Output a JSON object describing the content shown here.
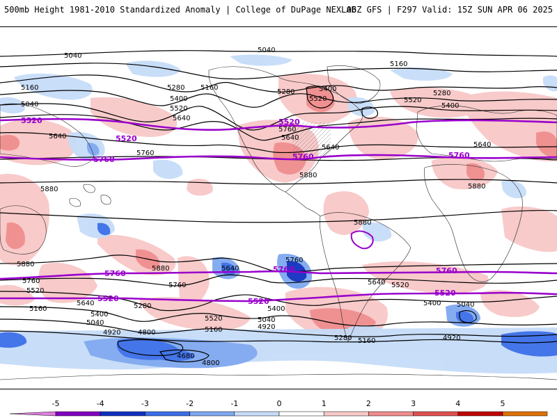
{
  "header": {
    "title": "500mb Height 1981-2010 Standardized Anomaly | College of DuPage NEXLAB",
    "run_info": "06Z GFS | F297 Valid: 15Z SUN APR 06 2025"
  },
  "colorbar": {
    "ticks": [
      "-5",
      "-4",
      "-3",
      "-2",
      "-1",
      "0",
      "1",
      "2",
      "3",
      "4",
      "5"
    ],
    "colors": [
      "#e080e0",
      "#8000c0",
      "#1030c0",
      "#3a6ee8",
      "#7fa8f0",
      "#c6dcf8",
      "#ffffff",
      "#f8c8c8",
      "#f08c8c",
      "#e05050",
      "#c00000",
      "#e07000",
      "#f8b000"
    ]
  },
  "map": {
    "projection": "cylindrical",
    "contour_interval": 120,
    "highlight_contours": [
      "5520",
      "5760"
    ],
    "black_labels": [
      "5040",
      "5040",
      "5160",
      "5280",
      "5160",
      "5280",
      "5400",
      "5160",
      "5040",
      "5400",
      "5520",
      "5280",
      "5520",
      "5400",
      "5520",
      "5640",
      "5640",
      "5760",
      "5640",
      "5760",
      "5640",
      "5880",
      "5880",
      "5880",
      "5880",
      "5880",
      "5640",
      "5760",
      "5880",
      "5760",
      "5640",
      "5760",
      "5640",
      "5520",
      "5520",
      "5400",
      "5280",
      "5400",
      "5160",
      "5040",
      "5040",
      "4920",
      "4920",
      "4800",
      "4680",
      "4800",
      "5280",
      "5160",
      "5400",
      "5040",
      "4920",
      "5160",
      "5520",
      "5640"
    ],
    "purple_labels": [
      "5520",
      "5520",
      "5520",
      "5760",
      "5760",
      "5760",
      "5760",
      "5760",
      "5760",
      "5520",
      "5520",
      "5520"
    ]
  }
}
